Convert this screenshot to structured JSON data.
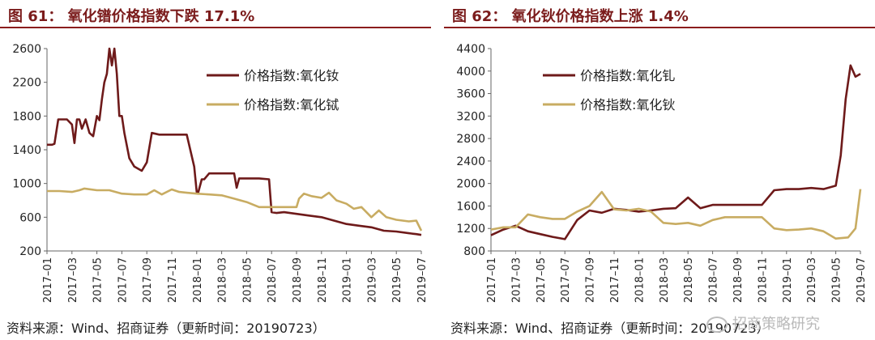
{
  "colors": {
    "dark_series": "#6e1a1a",
    "gold_series": "#c8ac62",
    "title": "#7b1c1c",
    "rule": "#8b1d1d"
  },
  "chart_data": [
    {
      "type": "line",
      "title": "图 61： 氧化镨价格指数下跌 17.1%",
      "ylim": [
        200,
        2600
      ],
      "yticks": [
        200,
        600,
        1000,
        1400,
        1800,
        2200,
        2600
      ],
      "xticks": [
        "2017–01",
        "2017–03",
        "2017–05",
        "2017–07",
        "2017–09",
        "2017–11",
        "2018–01",
        "2018–03",
        "2018–05",
        "2018–07",
        "2018–09",
        "2018–11",
        "2019–01",
        "2019–03",
        "2019–05",
        "2019–07"
      ],
      "legend_position": "top-right",
      "grid": false,
      "series": [
        {
          "name": "价格指数:氧化钕",
          "color": "#6e1a1a",
          "x": [
            0,
            0.2,
            0.3,
            0.45,
            0.5,
            0.8,
            1.0,
            1.1,
            1.2,
            1.3,
            1.4,
            1.55,
            1.7,
            1.85,
            2.0,
            2.1,
            2.2,
            2.3,
            2.4,
            2.5,
            2.6,
            2.7,
            2.8,
            2.9,
            3.0,
            3.1,
            3.3,
            3.5,
            3.8,
            4.0,
            4.2,
            4.5,
            4.8,
            5.0,
            5.3,
            5.6,
            5.9,
            6.0,
            6.05,
            6.2,
            6.3,
            6.5,
            7.0,
            7.5,
            7.6,
            7.7,
            8.0,
            8.5,
            8.9,
            9.0,
            9.2,
            9.5,
            10.0,
            10.5,
            11.0,
            11.5,
            12.0,
            12.5,
            13.0,
            13.5,
            14.0,
            14.5,
            14.8,
            15.0
          ],
          "values": [
            1460,
            1460,
            1470,
            1760,
            1760,
            1760,
            1700,
            1480,
            1760,
            1760,
            1650,
            1760,
            1600,
            1560,
            1800,
            1750,
            2000,
            2200,
            2300,
            2600,
            2400,
            2600,
            2300,
            1800,
            1800,
            1600,
            1300,
            1200,
            1150,
            1250,
            1600,
            1580,
            1580,
            1580,
            1580,
            1580,
            1200,
            900,
            880,
            1050,
            1050,
            1120,
            1120,
            1120,
            950,
            1060,
            1060,
            1060,
            1050,
            660,
            650,
            660,
            640,
            620,
            600,
            560,
            520,
            500,
            480,
            440,
            430,
            410,
            400,
            390
          ]
        },
        {
          "name": "价格指数:氧化铽",
          "color": "#c8ac62",
          "x": [
            0,
            0.5,
            1.0,
            1.3,
            1.5,
            2.0,
            2.5,
            3.0,
            3.5,
            4.0,
            4.3,
            4.6,
            5.0,
            5.3,
            5.6,
            6.0,
            6.5,
            7.0,
            7.5,
            8.0,
            8.5,
            9.0,
            9.5,
            10.0,
            10.1,
            10.3,
            10.6,
            11.0,
            11.3,
            11.6,
            12.0,
            12.3,
            12.6,
            13.0,
            13.3,
            13.6,
            14.0,
            14.5,
            14.8,
            15.0
          ],
          "values": [
            910,
            910,
            900,
            920,
            940,
            920,
            920,
            880,
            870,
            870,
            920,
            870,
            930,
            900,
            890,
            880,
            870,
            860,
            820,
            780,
            720,
            720,
            720,
            720,
            820,
            880,
            850,
            830,
            890,
            800,
            760,
            700,
            720,
            600,
            680,
            600,
            570,
            550,
            560,
            440
          ]
        }
      ]
    },
    {
      "type": "line",
      "title": "图 62： 氧化钬价格指数上涨 1.4%",
      "ylim": [
        800,
        4400
      ],
      "yticks": [
        800,
        1200,
        1600,
        2000,
        2400,
        2800,
        3200,
        3600,
        4000,
        4400
      ],
      "xticks": [
        "2017–01",
        "2017–03",
        "2017–05",
        "2017–07",
        "2017–09",
        "2017–11",
        "2018–01",
        "2018–03",
        "2018–05",
        "2018–07",
        "2018–09",
        "2018–11",
        "2019–01",
        "2019–03",
        "2019–05",
        "2019–07"
      ],
      "legend_position": "top-right",
      "grid": false,
      "series": [
        {
          "name": "价格指数:氧化钆",
          "color": "#6e1a1a",
          "x": [
            0,
            0.5,
            1.0,
            1.5,
            2.0,
            2.5,
            3.0,
            3.5,
            4.0,
            4.5,
            5.0,
            5.5,
            6.0,
            6.5,
            7.0,
            7.5,
            8.0,
            8.5,
            9.0,
            9.5,
            10.0,
            10.5,
            11.0,
            11.5,
            12.0,
            12.5,
            13.0,
            13.5,
            14.0,
            14.2,
            14.4,
            14.6,
            14.8,
            15.0
          ],
          "values": [
            1080,
            1180,
            1250,
            1150,
            1100,
            1050,
            1010,
            1350,
            1520,
            1480,
            1550,
            1530,
            1500,
            1520,
            1550,
            1560,
            1750,
            1560,
            1620,
            1620,
            1620,
            1620,
            1620,
            1880,
            1900,
            1900,
            1920,
            1900,
            1960,
            2500,
            3500,
            4100,
            3900,
            3950
          ]
        },
        {
          "name": "价格指数:氧化钬",
          "color": "#c8ac62",
          "x": [
            0,
            0.5,
            1.0,
            1.5,
            2.0,
            2.5,
            3.0,
            3.5,
            4.0,
            4.5,
            5.0,
            5.5,
            6.0,
            6.5,
            7.0,
            7.5,
            8.0,
            8.5,
            9.0,
            9.5,
            10.0,
            10.5,
            11.0,
            11.5,
            12.0,
            12.5,
            13.0,
            13.5,
            14.0,
            14.5,
            14.8,
            15.0
          ],
          "values": [
            1180,
            1220,
            1220,
            1450,
            1400,
            1370,
            1370,
            1500,
            1600,
            1850,
            1540,
            1520,
            1550,
            1500,
            1300,
            1280,
            1300,
            1250,
            1350,
            1400,
            1400,
            1400,
            1400,
            1200,
            1170,
            1180,
            1200,
            1150,
            1020,
            1040,
            1200,
            1900
          ]
        }
      ]
    }
  ],
  "panels": {
    "left": {
      "title": "图 61： 氧化镨价格指数下跌 17.1%",
      "source": "资料来源：Wind、招商证券（更新时间：20190723）"
    },
    "right": {
      "title": "图 62： 氧化钬价格指数上涨 1.4%",
      "source": "资料来源：Wind、招商证券（更新时间：20190723）"
    }
  },
  "watermark": "招商策略研究"
}
